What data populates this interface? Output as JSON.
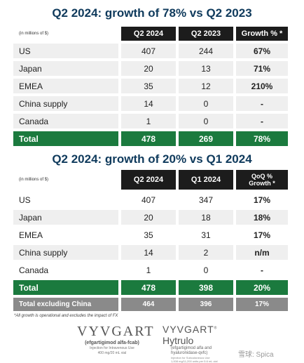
{
  "table1": {
    "title": "Q2 2024: growth of 78% vs Q2 2023",
    "unit_note": "(in millions of $)",
    "headers": [
      "Q2 2024",
      "Q2 2023",
      "Growth % *"
    ],
    "rows": [
      {
        "label": "US",
        "a": "407",
        "b": "244",
        "c": "67%"
      },
      {
        "label": "Japan",
        "a": "20",
        "b": "13",
        "c": "71%"
      },
      {
        "label": "EMEA",
        "a": "35",
        "b": "12",
        "c": "210%"
      },
      {
        "label": "China supply",
        "a": "14",
        "b": "0",
        "c": "-"
      },
      {
        "label": "Canada",
        "a": "1",
        "b": "0",
        "c": "-"
      }
    ],
    "total": {
      "label": "Total",
      "a": "478",
      "b": "269",
      "c": "78%"
    }
  },
  "table2": {
    "title": "Q2 2024: growth of 20% vs Q1 2024",
    "unit_note": "(in millions of $)",
    "headers": [
      "Q2 2024",
      "Q1 2024",
      "QoQ % Growth *"
    ],
    "rows": [
      {
        "label": "US",
        "a": "407",
        "b": "347",
        "c": "17%"
      },
      {
        "label": "Japan",
        "a": "20",
        "b": "18",
        "c": "18%"
      },
      {
        "label": "EMEA",
        "a": "35",
        "b": "31",
        "c": "17%"
      },
      {
        "label": "China supply",
        "a": "14",
        "b": "2",
        "c": "n/m"
      },
      {
        "label": "Canada",
        "a": "1",
        "b": "0",
        "c": "-"
      }
    ],
    "total": {
      "label": "Total",
      "a": "478",
      "b": "398",
      "c": "20%"
    },
    "excl": {
      "label": "Total excluding China",
      "a": "464",
      "b": "396",
      "c": "17%"
    }
  },
  "footnote": "*All growth is operational and excludes the impact of FX",
  "logo1": {
    "brand": "VYVGART",
    "sub": "(efgartigimod alfa-fcab)",
    "line1": "Injection for Intravenous Use",
    "line2": "400 mg/20 mL vial"
  },
  "logo2": {
    "brand": "VYVGART",
    "brand2": "Hytrulo",
    "sub1": "(efgartigimod alfa and",
    "sub2": "hyaluronidase-qvfc)",
    "tiny1": "Injection for Subcutaneous Use",
    "tiny2": "1,008 mg/11,200 units per 5.6 mL vial"
  },
  "watermark": "雪球: Spica"
}
